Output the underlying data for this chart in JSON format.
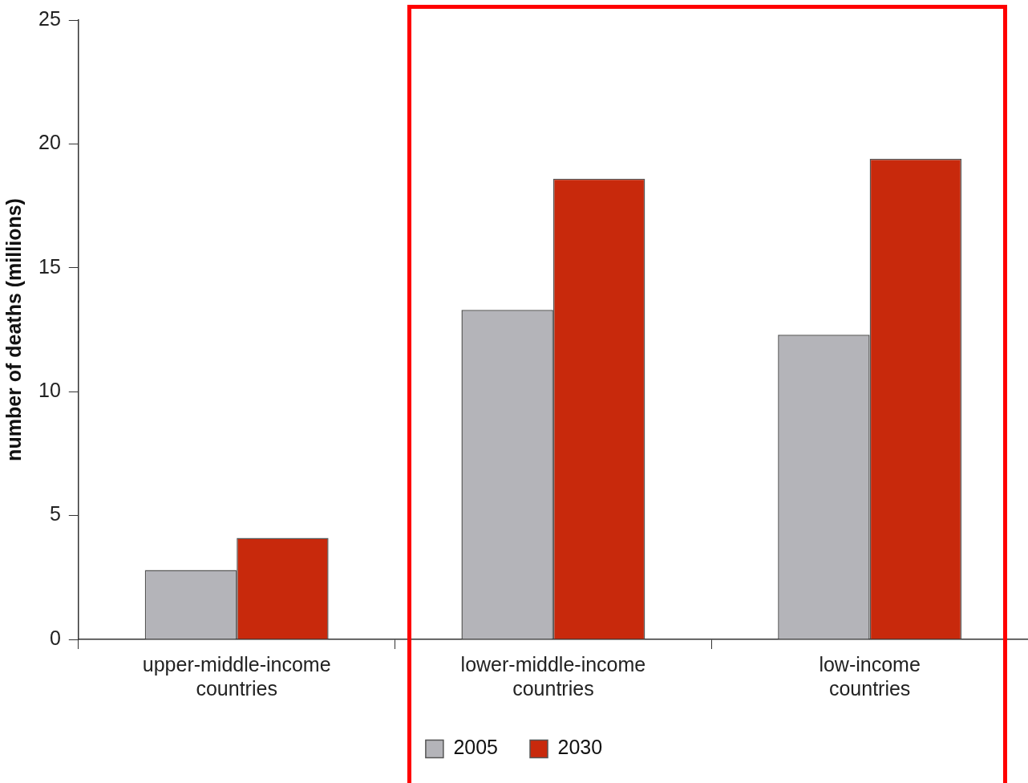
{
  "chart_data": {
    "type": "bar",
    "ylabel": "number of deaths (millions)",
    "categories": [
      "upper-middle-income countries",
      "lower-middle-income countries",
      "low-income countries"
    ],
    "series": [
      {
        "name": "2005",
        "color": "#b4b4b9",
        "values": [
          2.8,
          13.3,
          12.3
        ]
      },
      {
        "name": "2030",
        "color": "#c8290c",
        "values": [
          4.1,
          18.6,
          19.4
        ]
      }
    ],
    "ylim": [
      0,
      25
    ],
    "yticks": [
      0,
      5,
      10,
      15,
      20,
      25
    ],
    "grid": false,
    "legend": "bottom"
  }
}
